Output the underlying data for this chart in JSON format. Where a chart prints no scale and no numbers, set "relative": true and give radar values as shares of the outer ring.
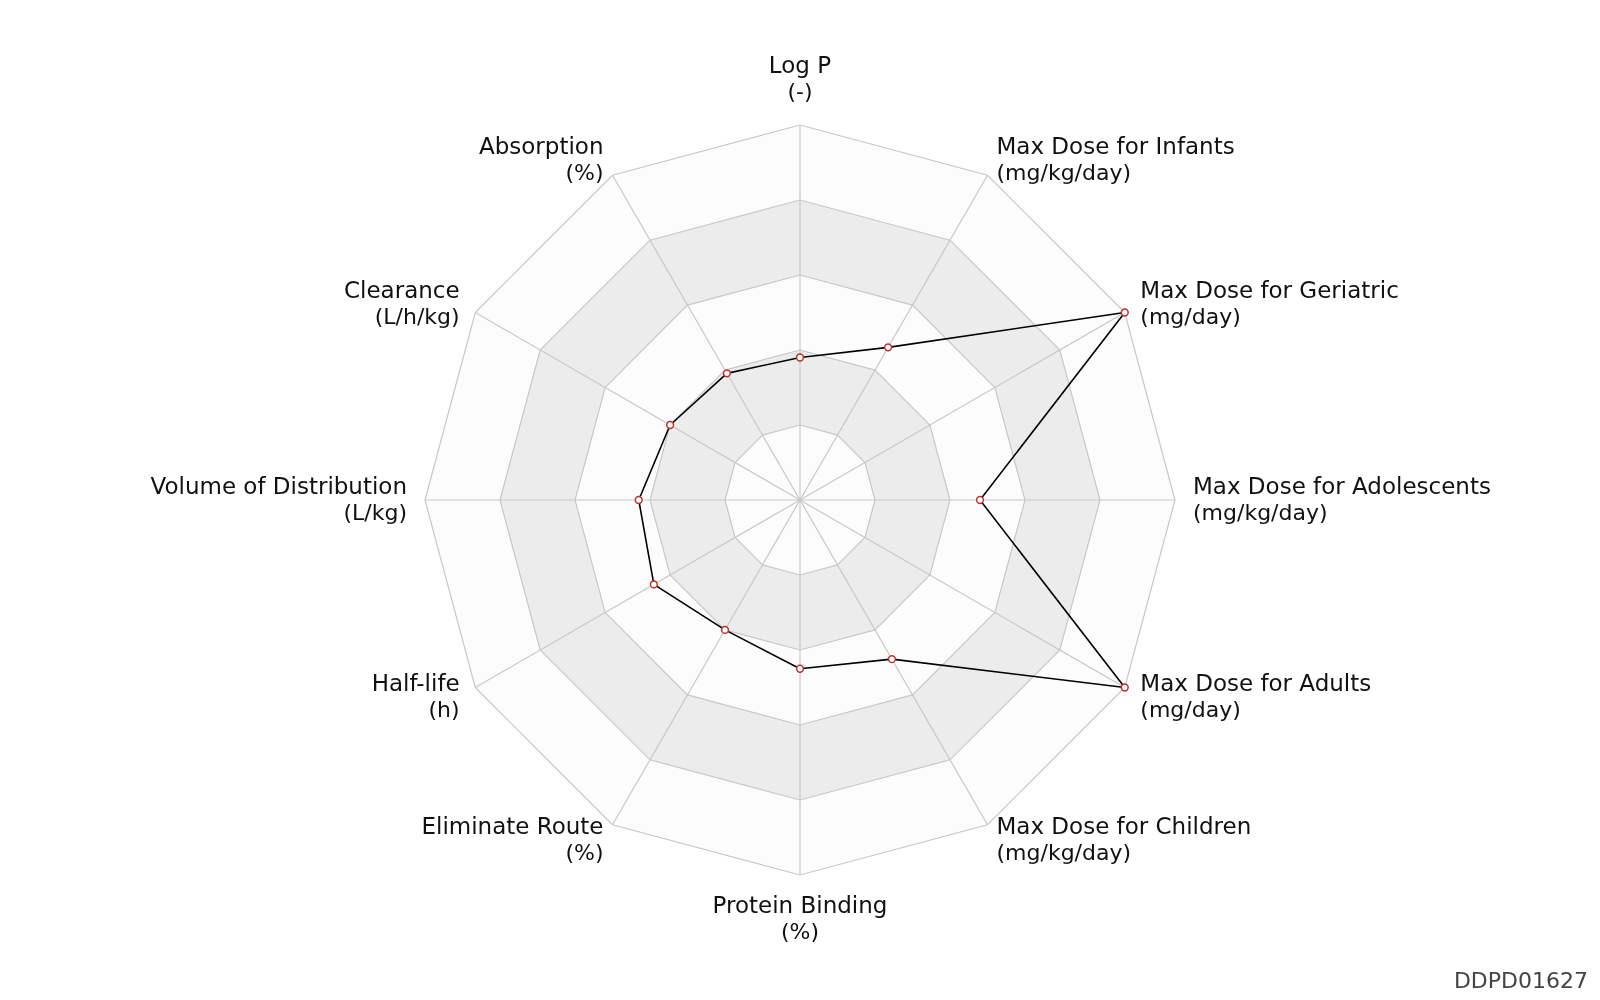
{
  "chart_data": {
    "type": "radar",
    "relative": true,
    "grid": true,
    "marker": "circle",
    "line_style": "solid",
    "categories": [
      "Log P\n(-)",
      "Max Dose for Infants\n(mg/kg/day)",
      "Max Dose for Geriatric\n(mg/day)",
      "Max Dose for Adolescents\n(mg/kg/day)",
      "Max Dose for Adults\n(mg/day)",
      "Max Dose for Children\n(mg/kg/day)",
      "Protein Binding\n(%)",
      "Eliminate Route\n(%)",
      "Half-life\n(h)",
      "Volume of Distribution\n(L/kg)",
      "Clearance\n(L/h/kg)",
      "Absorption\n(%)"
    ],
    "series": [
      {
        "color": "#000000",
        "values": [
          0.38,
          0.47,
          1.0,
          0.48,
          1.0,
          0.49,
          0.45,
          0.4,
          0.45,
          0.43,
          0.4,
          0.39
        ]
      }
    ],
    "annotations": [
      "DDPD01627"
    ]
  }
}
